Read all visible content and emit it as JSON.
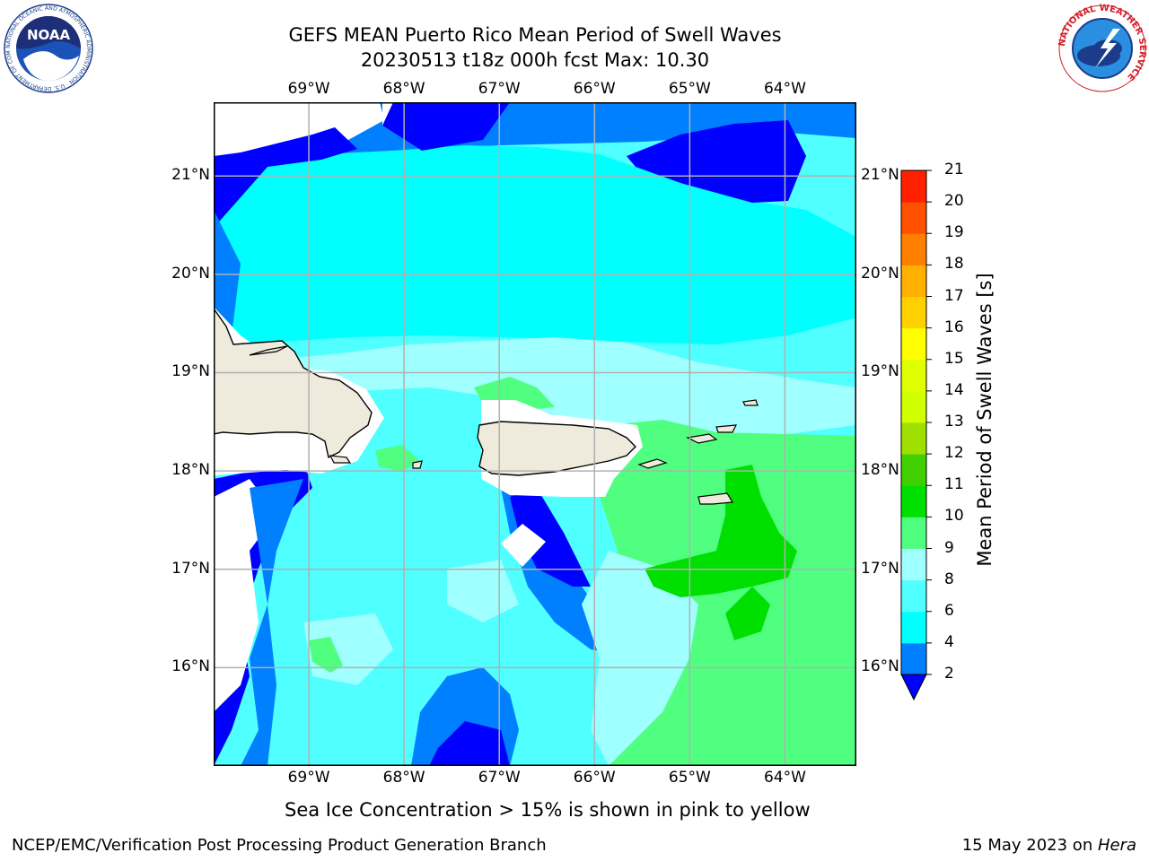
{
  "header": {
    "title_line1": "GEFS MEAN Puerto Rico Mean Period of Swell Waves",
    "title_line2": "20230513 t18z 000h fcst   Max: 10.30"
  },
  "logos": {
    "noaa_label": "NOAA",
    "noaa_ring_text": "NATIONAL OCEANIC AND ATMOSPHERIC ADMINISTRATION · U.S. DEPARTMENT OF COMMERCE",
    "nws_ring_text": "NATIONAL WEATHER SERVICE"
  },
  "map": {
    "lon_ticks": [
      "69°W",
      "68°W",
      "67°W",
      "66°W",
      "65°W",
      "64°W"
    ],
    "lat_ticks": [
      "21°N",
      "20°N",
      "19°N",
      "18°N",
      "17°N",
      "16°N"
    ],
    "lon_values": [
      -69,
      -68,
      -67,
      -66,
      -65,
      -64
    ],
    "lat_values": [
      21,
      20,
      19,
      18,
      17,
      16
    ],
    "extent": {
      "lon_min": -70,
      "lon_max": -63.25,
      "lat_min": 15,
      "lat_max": 21.75
    },
    "colors": {
      "land": "#efebdc",
      "ice": "#ffffff",
      "grid": "#b0b0b0",
      "c2": "#0000ff",
      "c4": "#0080ff",
      "c6": "#00ffff",
      "c8": "#50ffff",
      "c9": "#a0ffff",
      "c10": "#50ff80",
      "c11": "#00e000"
    }
  },
  "colorbar": {
    "label": "Mean Period of Swell Waves [s]",
    "ticks": [
      "2",
      "4",
      "6",
      "8",
      "9",
      "10",
      "11",
      "12",
      "13",
      "14",
      "15",
      "16",
      "17",
      "18",
      "19",
      "20",
      "21"
    ],
    "colors": [
      "#0080ff",
      "#00ffff",
      "#50ffff",
      "#a0ffff",
      "#50ff80",
      "#00e000",
      "#40d000",
      "#a0e000",
      "#d0ff00",
      "#e0ff00",
      "#ffff00",
      "#ffd000",
      "#ffb000",
      "#ff8000",
      "#ff5000",
      "#ff2000"
    ],
    "under_color": "#0000ff"
  },
  "footer": {
    "note": "Sea Ice Concentration > 15% is shown in pink to yellow",
    "branch": "NCEP/EMC/Verification Post Processing Product Generation Branch",
    "date": "15 May 2023 on ",
    "system": "Hera"
  }
}
